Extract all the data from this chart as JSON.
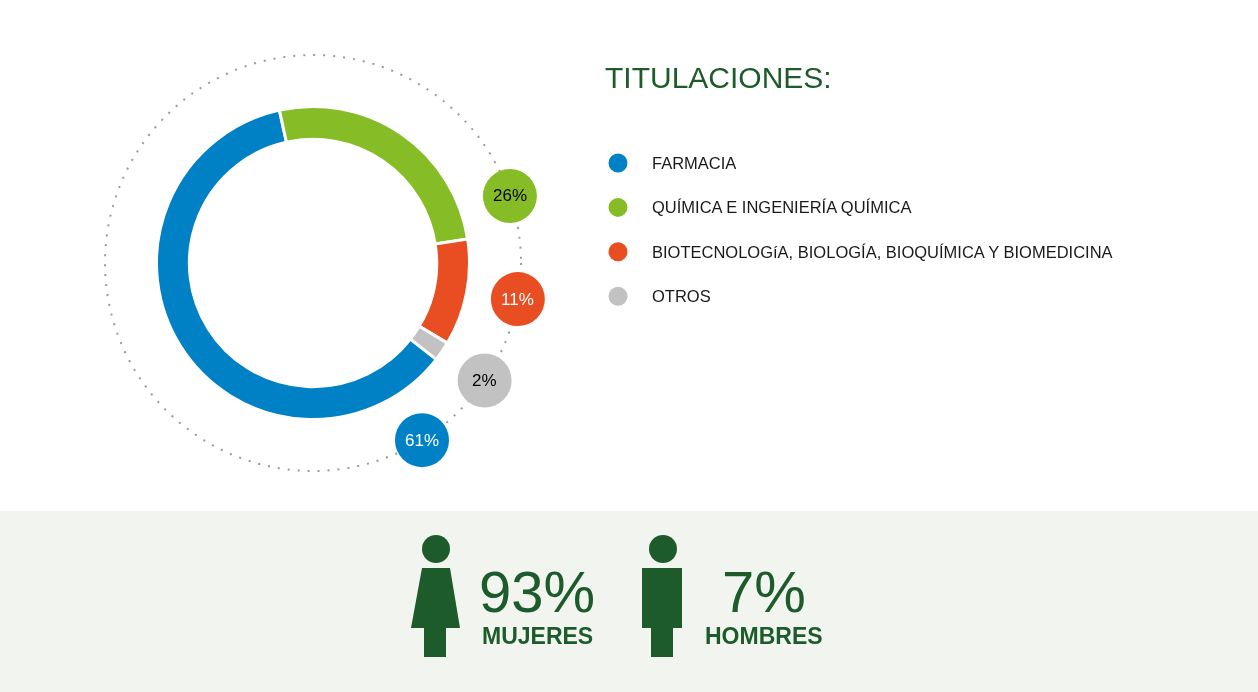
{
  "chart_data": [
    {
      "type": "donut",
      "title": "TITULACIONES:",
      "categories": [
        "FARMACIA",
        "QUÍMICA E INGENIERÍA QUÍMICA",
        "BIOTECNOLOGíA, BIOLOGÍA, BIOQUÍMICA Y BIOMEDICINA",
        "OTROS"
      ],
      "values": [
        61,
        26,
        11,
        2
      ],
      "colors": [
        "#0081c6",
        "#86bc25",
        "#e84e22",
        "#c2c2c2"
      ],
      "value_labels": [
        "61%",
        "26%",
        "11%",
        "2%"
      ],
      "legend": "right"
    },
    {
      "type": "other",
      "annotations": [
        "93%",
        "MUJERES",
        "7%",
        "HOMBRES"
      ]
    }
  ]
}
